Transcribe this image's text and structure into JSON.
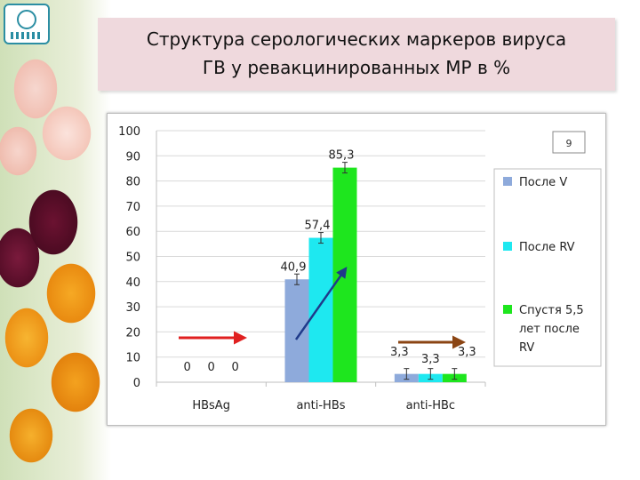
{
  "title": {
    "line1": "Структура серологических маркеров вируса",
    "line2": "ГВ у ревакцинированных МР  в %"
  },
  "slide_number": "9",
  "colors": {
    "series": [
      "#8eaadb",
      "#1ee8f0",
      "#1ee61e"
    ],
    "arrow_red": "#e02020",
    "arrow_blue": "#1f3a8a",
    "arrow_brown": "#8b4513"
  },
  "chart_data": {
    "type": "bar",
    "categories": [
      "HBsAg",
      "anti-HBs",
      "anti-HBc"
    ],
    "series": [
      {
        "name": "После V",
        "values": [
          0,
          40.9,
          3.3
        ],
        "labels": [
          "0",
          "40,9",
          "3,3"
        ]
      },
      {
        "name": "После RV",
        "values": [
          0,
          57.4,
          3.3
        ],
        "labels": [
          "0",
          "57,4",
          "3,3"
        ]
      },
      {
        "name": "Спустя 5,5 лет после RV",
        "values": [
          0,
          85.3,
          3.3
        ],
        "labels": [
          "0",
          "85,3",
          "3,3"
        ]
      }
    ],
    "legend_lines": [
      [
        "После V"
      ],
      [
        "После RV"
      ],
      [
        "Спустя 5,5",
        "лет после",
        "RV"
      ]
    ],
    "ylim": [
      0,
      100
    ],
    "yticks": [
      0,
      10,
      20,
      30,
      40,
      50,
      60,
      70,
      80,
      90,
      100
    ],
    "ytick_labels": [
      "0",
      "10",
      "20",
      "30",
      "40",
      "50",
      "60",
      "70",
      "80",
      "90",
      "100"
    ],
    "grid": true,
    "legend_position": "right"
  }
}
